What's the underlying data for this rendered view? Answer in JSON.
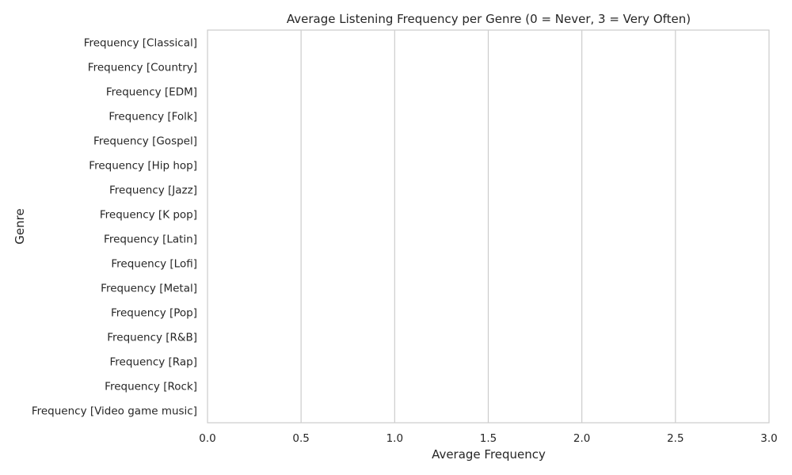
{
  "chart_data": {
    "type": "bar",
    "orientation": "horizontal",
    "title": "Average Listening Frequency per Genre (0 = Never, 3 = Very Often)",
    "xlabel": "Average Frequency",
    "ylabel": "Genre",
    "xlim": [
      0,
      3.0
    ],
    "x_ticks": [
      "0.0",
      "0.5",
      "1.0",
      "1.5",
      "2.0",
      "2.5",
      "3.0"
    ],
    "grid": "x-only",
    "categories": [
      "Frequency [Classical]",
      "Frequency [Country]",
      "Frequency [EDM]",
      "Frequency [Folk]",
      "Frequency [Gospel]",
      "Frequency [Hip hop]",
      "Frequency [Jazz]",
      "Frequency [K pop]",
      "Frequency [Latin]",
      "Frequency [Lofi]",
      "Frequency [Metal]",
      "Frequency [Pop]",
      "Frequency [R&B]",
      "Frequency [Rap]",
      "Frequency [Rock]",
      "Frequency [Video game music]"
    ],
    "values": [
      0,
      0,
      0,
      0,
      0,
      0,
      0,
      0,
      0,
      0,
      0,
      0,
      0,
      0,
      0,
      0
    ]
  }
}
